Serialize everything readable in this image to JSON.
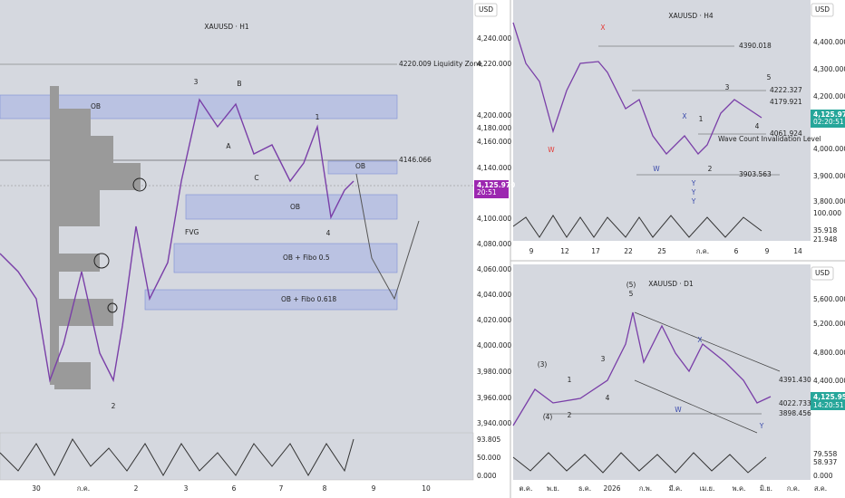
{
  "panels": [
    {
      "title": "XAUUSD · H1",
      "currency": "USD",
      "price_axis": [
        "4,240.000",
        "4,220.000",
        "4,200.000",
        "4,180.000",
        "4,160.000",
        "4,140.000",
        "4,100.000",
        "4,080.000",
        "4,060.000",
        "4,040.000",
        "4,020.000",
        "4,000.000",
        "3,980.000",
        "3,960.000",
        "3,940.000"
      ],
      "last_price": "4,125.970",
      "last_time": "20:51",
      "oscillator_axis": [
        "93.805",
        "50.000",
        "0.000"
      ],
      "annotations": [
        "4220.009 Liquidity Zone",
        "4146.066",
        "OB",
        "OB",
        "OB",
        "OB + Fibo 0.5",
        "OB +  Fibo 0.618",
        "FVG"
      ],
      "wave_labels": [
        "3",
        "B",
        "A",
        "C",
        "1",
        "4",
        "2"
      ],
      "time_axis": [
        "30",
        "ก.ค.",
        "2",
        "3",
        "6",
        "7",
        "8",
        "9",
        "10"
      ]
    },
    {
      "title": "XAUUSD · H4",
      "currency": "USD",
      "price_axis": [
        "4,400.000",
        "4,300.000",
        "4,200.000",
        "4,000.000",
        "3,900.000",
        "3,800.000"
      ],
      "last_price": "4,125.970",
      "last_time": "02:20:51",
      "oscillator_axis": [
        "100.000",
        "35.918",
        "21.948"
      ],
      "annotations": [
        "4390.018",
        "4222.327",
        "4179.921",
        "4061.924",
        "3903.563",
        "Wave Count Invalidation Level"
      ],
      "wave_labels": [
        "X",
        "W",
        "5",
        "3",
        "1",
        "X",
        "4",
        "W",
        "2",
        "Y",
        "Y",
        "Y"
      ],
      "time_axis": [
        "9",
        "12",
        "17",
        "22",
        "25",
        "ก.ค.",
        "6",
        "9",
        "14"
      ]
    },
    {
      "title": "XAUUSD · D1",
      "currency": "USD",
      "price_axis": [
        "5,600.000",
        "5,200.000",
        "4,800.000",
        "4,400.000"
      ],
      "last_price": "4,125.955",
      "last_time": "14:20:51",
      "oscillator_axis": [
        "79.558",
        "58.937",
        "0.000"
      ],
      "annotations": [
        "4391.430",
        "4022.733",
        "3898.456"
      ],
      "wave_labels": [
        "(5)",
        "5",
        "3",
        "1",
        "(3)",
        "4",
        "(4)",
        "2",
        "W",
        "X",
        "Y"
      ],
      "time_axis": [
        "ต.ค.",
        "พ.ย.",
        "ธ.ค.",
        "2026",
        "ก.พ.",
        "มี.ค.",
        "เม.ย.",
        "พ.ค.",
        "มิ.ย.",
        "ก.ค.",
        "ส.ค."
      ]
    }
  ]
}
